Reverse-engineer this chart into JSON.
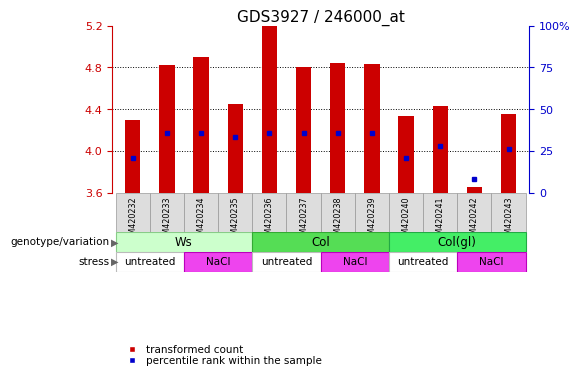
{
  "title": "GDS3927 / 246000_at",
  "samples": [
    "GSM420232",
    "GSM420233",
    "GSM420234",
    "GSM420235",
    "GSM420236",
    "GSM420237",
    "GSM420238",
    "GSM420239",
    "GSM420240",
    "GSM420241",
    "GSM420242",
    "GSM420243"
  ],
  "bar_values": [
    4.3,
    4.82,
    4.9,
    4.45,
    5.2,
    4.8,
    4.84,
    4.83,
    4.33,
    4.43,
    3.65,
    4.35
  ],
  "bar_bottom": 3.6,
  "blue_marker_values": [
    3.93,
    4.17,
    4.17,
    4.13,
    4.17,
    4.17,
    4.17,
    4.17,
    3.93,
    4.05,
    3.73,
    4.02
  ],
  "ylim_left": [
    3.6,
    5.2
  ],
  "ylim_right": [
    0,
    100
  ],
  "yticks_left": [
    3.6,
    4.0,
    4.4,
    4.8,
    5.2
  ],
  "yticks_right": [
    0,
    25,
    50,
    75,
    100
  ],
  "ytick_labels_right": [
    "0",
    "25",
    "50",
    "75",
    "100%"
  ],
  "bar_color": "#cc0000",
  "blue_color": "#0000cc",
  "axis_left_color": "#cc0000",
  "axis_right_color": "#0000cc",
  "genotype_groups": [
    {
      "label": "Ws",
      "start": 0,
      "end": 3,
      "color": "#ccffcc",
      "border": "#88cc88"
    },
    {
      "label": "Col",
      "start": 4,
      "end": 7,
      "color": "#55dd55",
      "border": "#33aa33"
    },
    {
      "label": "Col(gl)",
      "start": 8,
      "end": 11,
      "color": "#44ee66",
      "border": "#22aa44"
    }
  ],
  "stress_groups": [
    {
      "label": "untreated",
      "start": 0,
      "end": 1,
      "color": "#ffffff",
      "border": "#bbbbbb"
    },
    {
      "label": "NaCl",
      "start": 2,
      "end": 3,
      "color": "#ee44ee",
      "border": "#bb00bb"
    },
    {
      "label": "untreated",
      "start": 4,
      "end": 5,
      "color": "#ffffff",
      "border": "#bbbbbb"
    },
    {
      "label": "NaCl",
      "start": 6,
      "end": 7,
      "color": "#ee44ee",
      "border": "#bb00bb"
    },
    {
      "label": "untreated",
      "start": 8,
      "end": 9,
      "color": "#ffffff",
      "border": "#bbbbbb"
    },
    {
      "label": "NaCl",
      "start": 10,
      "end": 11,
      "color": "#ee44ee",
      "border": "#bb00bb"
    }
  ],
  "legend_items": [
    {
      "label": "transformed count",
      "color": "#cc0000"
    },
    {
      "label": "percentile rank within the sample",
      "color": "#0000cc"
    }
  ],
  "genotype_label": "genotype/variation",
  "stress_label": "stress",
  "title_fontsize": 11,
  "bar_width": 0.45,
  "sample_box_color": "#dddddd",
  "sample_box_edge": "#999999"
}
